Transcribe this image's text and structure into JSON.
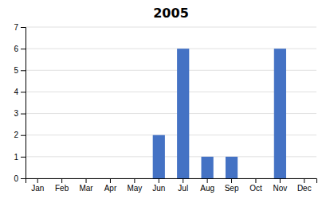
{
  "chart_data": {
    "type": "bar",
    "title": "2005",
    "categories": [
      "Jan",
      "Feb",
      "Mar",
      "Apr",
      "May",
      "Jun",
      "Jul",
      "Aug",
      "Sep",
      "Oct",
      "Nov",
      "Dec"
    ],
    "values": [
      0,
      0,
      0,
      0,
      0,
      2,
      6,
      1,
      1,
      0,
      6,
      0
    ],
    "color": "#4472C4",
    "ylim": [
      0,
      7
    ],
    "yticks": [
      0,
      1,
      2,
      3,
      4,
      5,
      6,
      7
    ],
    "grid": true
  }
}
